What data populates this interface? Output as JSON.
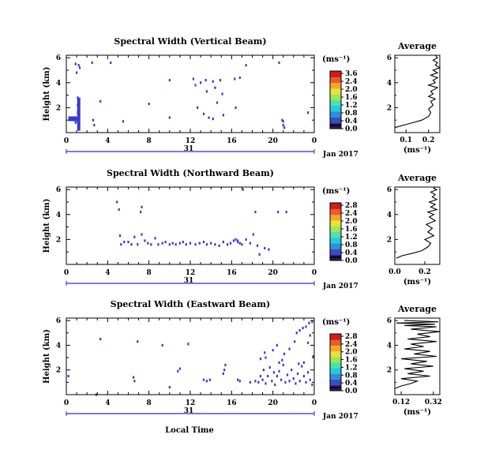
{
  "common": {
    "ylabel": "Height (km)",
    "xticks": [
      "0",
      "4",
      "8",
      "12",
      "16",
      "20",
      "0"
    ],
    "yticks": [
      "2",
      "4",
      "6"
    ],
    "date_day": "31",
    "date_month": "Jan 2017",
    "xlabel": "Local Time",
    "unit": "(ms⁻¹)",
    "avg_title": "Average",
    "avg_unit": "(ms⁻¹)",
    "colorbar_colors": [
      "#2b1b6b",
      "#3b4cc0",
      "#2f8fd9",
      "#22c9e0",
      "#4fe0a8",
      "#9ae85a",
      "#e8e23a",
      "#f5a623",
      "#ec5a2a",
      "#c81e1e"
    ]
  },
  "chart_data": [
    {
      "type": "heatmap",
      "title": "Spectral Width (Vertical Beam)",
      "xlim": [
        0,
        24
      ],
      "ylim": [
        0,
        6.2
      ],
      "colorbar_ticks": [
        "3.6",
        "2.4",
        "2.0",
        "1.6",
        "1.2",
        "0.8",
        "0.4",
        "0.0"
      ],
      "avg_xticks": [
        "0.1",
        "0.2"
      ],
      "avg_xlim": [
        0.05,
        0.25
      ],
      "avg_yticks": [
        "2",
        "4",
        "6"
      ],
      "cells": [
        [
          0.7,
          1.2
        ],
        [
          0.8,
          1.0
        ],
        [
          0.9,
          0.8
        ],
        [
          1.0,
          1.1
        ],
        [
          1.1,
          0.9
        ],
        [
          1.1,
          1.6
        ],
        [
          1.1,
          2.2
        ],
        [
          1.1,
          2.8
        ],
        [
          1.2,
          0.9
        ],
        [
          1.2,
          1.5
        ],
        [
          1.2,
          2.0
        ],
        [
          1.2,
          2.6
        ],
        [
          0.5,
          1.1
        ],
        [
          0.3,
          1.2
        ],
        [
          1.2,
          5.4
        ],
        [
          1.3,
          5.2
        ],
        [
          0.9,
          5.5
        ],
        [
          1.0,
          4.8
        ],
        [
          2.5,
          5.6
        ],
        [
          2.6,
          1.0
        ],
        [
          2.7,
          0.6
        ],
        [
          4.3,
          5.6
        ],
        [
          5.5,
          0.9
        ],
        [
          10.0,
          4.2
        ],
        [
          10.0,
          1.2
        ],
        [
          12.3,
          4.3
        ],
        [
          12.5,
          3.8
        ],
        [
          12.7,
          2.0
        ],
        [
          13.0,
          4.0
        ],
        [
          13.3,
          1.5
        ],
        [
          13.5,
          4.2
        ],
        [
          13.6,
          3.3
        ],
        [
          13.8,
          1.2
        ],
        [
          14.2,
          4.1
        ],
        [
          14.4,
          3.6
        ],
        [
          14.6,
          2.4
        ],
        [
          14.9,
          4.2
        ],
        [
          15.1,
          3.1
        ],
        [
          15.2,
          1.4
        ],
        [
          16.3,
          4.3
        ],
        [
          16.4,
          2.0
        ],
        [
          16.8,
          4.4
        ],
        [
          17.4,
          5.4
        ],
        [
          20.6,
          5.6
        ],
        [
          20.9,
          1.0
        ],
        [
          21.0,
          0.6
        ],
        [
          21.1,
          0.4
        ],
        [
          21.0,
          0.9
        ],
        [
          23.4,
          1.6
        ],
        [
          14.2,
          1.1
        ],
        [
          8.0,
          2.3
        ],
        [
          3.3,
          2.5
        ]
      ],
      "avg_x": [
        0.05,
        0.09,
        0.13,
        0.17,
        0.2,
        0.21,
        0.2,
        0.22,
        0.21,
        0.23,
        0.2,
        0.22,
        0.21,
        0.24,
        0.2,
        0.23,
        0.22,
        0.24,
        0.21,
        0.24,
        0.22,
        0.25,
        0.23,
        0.24,
        0.22,
        0.24,
        0.23
      ],
      "avg_y": [
        0.4,
        0.6,
        0.8,
        1.0,
        1.3,
        1.6,
        1.9,
        2.2,
        2.5,
        2.7,
        2.9,
        3.1,
        3.3,
        3.6,
        3.8,
        4.0,
        4.2,
        4.4,
        4.6,
        4.8,
        5.0,
        5.2,
        5.4,
        5.6,
        5.8,
        6.0,
        6.2
      ]
    },
    {
      "type": "heatmap",
      "title": "Spectral Width (Northward Beam)",
      "xlim": [
        0,
        24
      ],
      "ylim": [
        0,
        6.2
      ],
      "colorbar_ticks": [
        "2.8",
        "2.4",
        "2.0",
        "1.6",
        "1.2",
        "0.8",
        "0.4",
        "0.0"
      ],
      "avg_xticks": [
        "0.0",
        "0.2"
      ],
      "avg_xlim": [
        0.0,
        0.3
      ],
      "avg_yticks": [
        "2",
        "4",
        "6"
      ],
      "cells": [
        [
          4.9,
          5.0
        ],
        [
          5.1,
          4.4
        ],
        [
          5.2,
          2.3
        ],
        [
          5.3,
          1.6
        ],
        [
          5.6,
          1.8
        ],
        [
          6.0,
          1.8
        ],
        [
          6.3,
          1.6
        ],
        [
          6.6,
          2.2
        ],
        [
          6.9,
          1.6
        ],
        [
          7.3,
          2.4
        ],
        [
          7.6,
          1.9
        ],
        [
          7.9,
          1.7
        ],
        [
          8.2,
          1.6
        ],
        [
          8.6,
          2.1
        ],
        [
          8.9,
          1.6
        ],
        [
          9.3,
          1.7
        ],
        [
          9.6,
          1.8
        ],
        [
          10.0,
          1.6
        ],
        [
          10.3,
          1.7
        ],
        [
          10.6,
          1.6
        ],
        [
          11.0,
          1.7
        ],
        [
          11.3,
          1.8
        ],
        [
          11.6,
          1.6
        ],
        [
          12.0,
          1.7
        ],
        [
          12.5,
          1.6
        ],
        [
          12.9,
          1.7
        ],
        [
          13.3,
          1.8
        ],
        [
          13.6,
          1.6
        ],
        [
          14.0,
          1.7
        ],
        [
          14.4,
          1.6
        ],
        [
          14.8,
          1.5
        ],
        [
          15.2,
          1.8
        ],
        [
          15.6,
          1.6
        ],
        [
          15.9,
          1.7
        ],
        [
          16.2,
          1.9
        ],
        [
          16.4,
          2.0
        ],
        [
          16.6,
          1.8
        ],
        [
          17.0,
          1.6
        ],
        [
          17.4,
          2.0
        ],
        [
          17.8,
          1.7
        ],
        [
          18.1,
          2.4
        ],
        [
          18.5,
          1.5
        ],
        [
          18.7,
          0.8
        ],
        [
          18.3,
          4.2
        ],
        [
          17.1,
          6.0
        ],
        [
          19.2,
          1.3
        ],
        [
          19.6,
          1.2
        ],
        [
          20.5,
          4.2
        ],
        [
          21.3,
          4.2
        ],
        [
          7.3,
          4.6
        ],
        [
          7.2,
          4.2
        ],
        [
          16.6,
          1.9
        ],
        [
          16.8,
          1.7
        ]
      ],
      "avg_x": [
        0.01,
        0.05,
        0.12,
        0.18,
        0.22,
        0.24,
        0.2,
        0.26,
        0.22,
        0.25,
        0.21,
        0.27,
        0.23,
        0.26,
        0.22,
        0.28,
        0.24,
        0.27,
        0.23,
        0.28,
        0.25,
        0.27,
        0.24,
        0.28,
        0.26,
        0.27
      ],
      "avg_y": [
        0.5,
        0.7,
        0.9,
        1.1,
        1.4,
        1.7,
        2.0,
        2.3,
        2.6,
        2.9,
        3.2,
        3.5,
        3.8,
        4.0,
        4.2,
        4.4,
        4.6,
        4.8,
        5.0,
        5.2,
        5.4,
        5.6,
        5.8,
        6.0,
        6.1,
        6.2
      ]
    },
    {
      "type": "heatmap",
      "title": "Spectral Width (Eastward Beam)",
      "xlim": [
        0,
        24
      ],
      "ylim": [
        0,
        6.2
      ],
      "colorbar_ticks": [
        "2.8",
        "2.4",
        "2.0",
        "1.6",
        "1.2",
        "0.8",
        "0.4",
        "0.0"
      ],
      "avg_xticks": [
        "0.12",
        "0.32"
      ],
      "avg_xlim": [
        0.08,
        0.36
      ],
      "avg_yticks": [
        "2",
        "4",
        "6"
      ],
      "cells": [
        [
          0.2,
          1.5
        ],
        [
          2.9,
          0.0
        ],
        [
          3.3,
          4.5
        ],
        [
          6.5,
          1.4
        ],
        [
          6.6,
          1.1
        ],
        [
          6.9,
          4.3
        ],
        [
          9.3,
          4.0
        ],
        [
          10.0,
          0.6
        ],
        [
          10.8,
          1.9
        ],
        [
          11.0,
          2.1
        ],
        [
          11.8,
          4.1
        ],
        [
          13.3,
          1.2
        ],
        [
          13.6,
          1.1
        ],
        [
          13.9,
          1.2
        ],
        [
          15.2,
          1.7
        ],
        [
          15.3,
          2.0
        ],
        [
          15.4,
          2.4
        ],
        [
          16.6,
          1.2
        ],
        [
          16.8,
          1.1
        ],
        [
          17.8,
          1.0
        ],
        [
          18.3,
          1.1
        ],
        [
          18.6,
          1.0
        ],
        [
          18.8,
          1.5
        ],
        [
          19.0,
          1.2
        ],
        [
          19.1,
          2.0
        ],
        [
          19.3,
          0.9
        ],
        [
          19.5,
          1.5
        ],
        [
          19.7,
          2.2
        ],
        [
          19.9,
          1.1
        ],
        [
          20.1,
          1.8
        ],
        [
          20.2,
          0.8
        ],
        [
          20.4,
          1.5
        ],
        [
          20.6,
          1.9
        ],
        [
          20.8,
          1.2
        ],
        [
          21.0,
          2.4
        ],
        [
          21.2,
          1.0
        ],
        [
          21.4,
          1.6
        ],
        [
          21.6,
          1.1
        ],
        [
          21.8,
          2.0
        ],
        [
          22.0,
          1.3
        ],
        [
          22.2,
          0.9
        ],
        [
          22.4,
          1.7
        ],
        [
          22.6,
          1.1
        ],
        [
          22.8,
          2.3
        ],
        [
          23.0,
          1.5
        ],
        [
          23.2,
          1.0
        ],
        [
          23.4,
          1.8
        ],
        [
          23.6,
          1.2
        ],
        [
          23.8,
          0.8
        ],
        [
          19.2,
          3.4
        ],
        [
          20.0,
          3.6
        ],
        [
          20.4,
          4.0
        ],
        [
          21.6,
          3.7
        ],
        [
          22.3,
          5.0
        ],
        [
          22.6,
          5.2
        ],
        [
          22.9,
          5.4
        ],
        [
          23.2,
          5.5
        ],
        [
          23.5,
          5.8
        ],
        [
          23.8,
          5.9
        ],
        [
          23.6,
          4.8
        ],
        [
          23.4,
          4.2
        ],
        [
          22.1,
          4.3
        ],
        [
          21.1,
          3.3
        ],
        [
          20.6,
          2.6
        ],
        [
          23.0,
          2.6
        ],
        [
          23.9,
          3.1
        ],
        [
          22.5,
          2.5
        ],
        [
          19.3,
          3.0
        ],
        [
          18.8,
          2.9
        ],
        [
          20.9,
          2.8
        ]
      ],
      "avg_x": [
        0.08,
        0.12,
        0.18,
        0.22,
        0.12,
        0.3,
        0.16,
        0.26,
        0.14,
        0.32,
        0.18,
        0.28,
        0.12,
        0.34,
        0.2,
        0.3,
        0.14,
        0.26,
        0.18,
        0.34,
        0.16,
        0.3,
        0.22,
        0.36,
        0.18,
        0.34,
        0.14,
        0.33,
        0.09,
        0.35,
        0.14
      ],
      "avg_y": [
        0.5,
        0.7,
        0.9,
        1.1,
        1.3,
        1.5,
        1.7,
        1.9,
        2.1,
        2.3,
        2.5,
        2.7,
        2.9,
        3.1,
        3.3,
        3.5,
        3.7,
        3.9,
        4.1,
        4.3,
        4.5,
        4.7,
        4.9,
        5.1,
        5.3,
        5.5,
        5.6,
        5.7,
        5.8,
        5.9,
        6.0
      ]
    }
  ]
}
